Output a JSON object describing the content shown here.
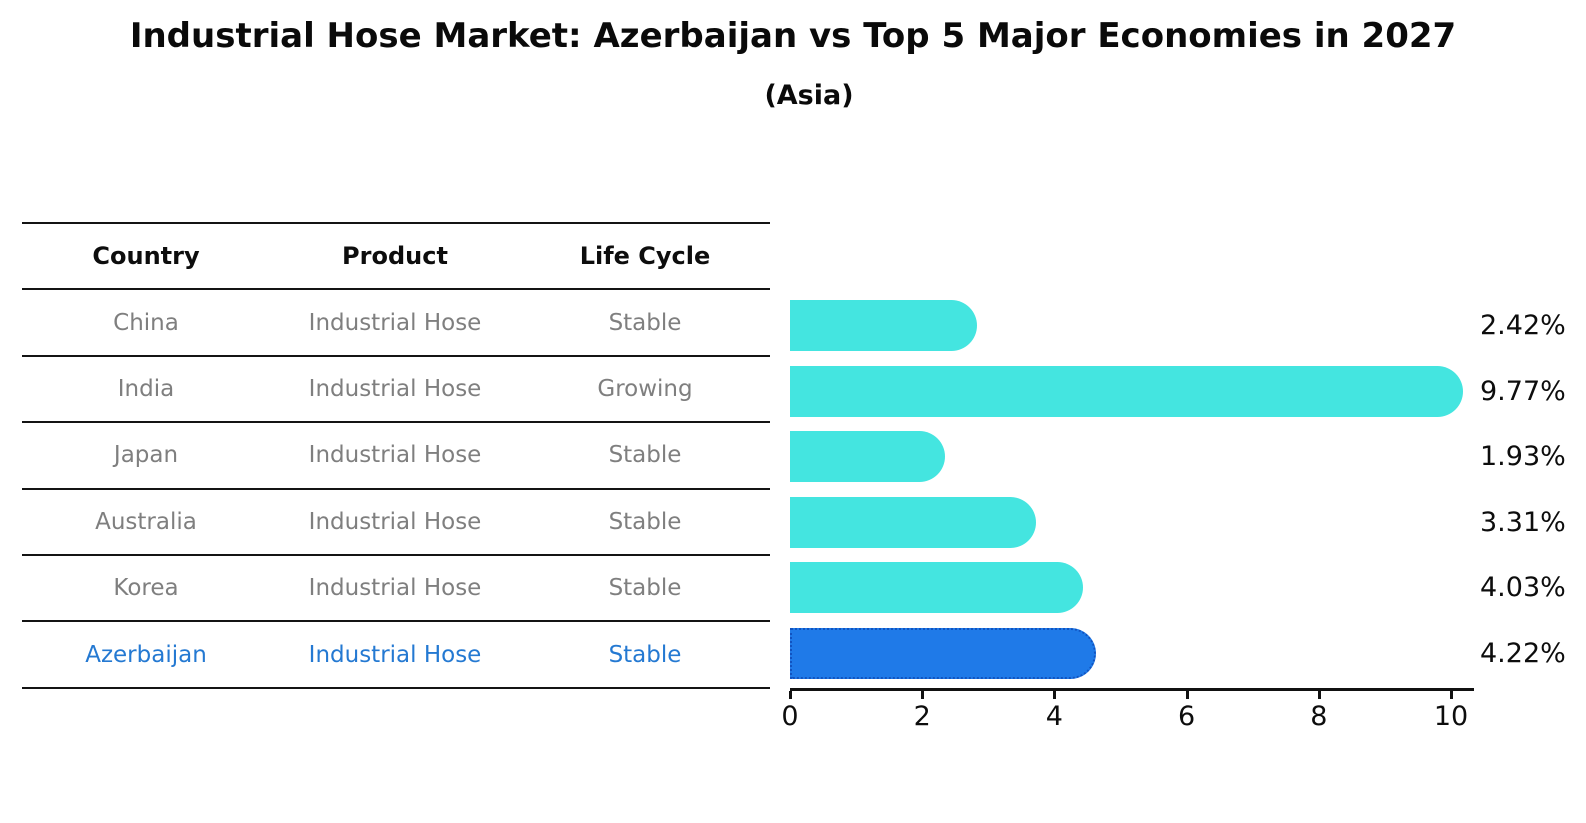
{
  "title": "Industrial Hose Market: Azerbaijan vs Top 5 Major Economies in 2027",
  "subtitle": "(Asia)",
  "table": {
    "headers": [
      "Country",
      "Product",
      "Life Cycle"
    ],
    "rows": [
      {
        "country": "China",
        "product": "Industrial Hose",
        "life_cycle": "Stable"
      },
      {
        "country": "India",
        "product": "Industrial Hose",
        "life_cycle": "Growing"
      },
      {
        "country": "Japan",
        "product": "Industrial Hose",
        "life_cycle": "Stable"
      },
      {
        "country": "Australia",
        "product": "Industrial Hose",
        "life_cycle": "Stable"
      },
      {
        "country": "Korea",
        "product": "Industrial Hose",
        "life_cycle": "Stable"
      },
      {
        "country": "Azerbaijan",
        "product": "Industrial Hose",
        "life_cycle": "Stable"
      }
    ]
  },
  "chart_data": {
    "type": "bar",
    "orientation": "horizontal",
    "title": "Industrial Hose Market: Azerbaijan vs Top 5 Major Economies in 2027",
    "subtitle": "(Asia)",
    "categories": [
      "China",
      "India",
      "Japan",
      "Australia",
      "Korea",
      "Azerbaijan"
    ],
    "values": [
      2.42,
      9.77,
      1.93,
      3.31,
      4.03,
      4.22
    ],
    "labels": [
      "2.42%",
      "9.77%",
      "1.93%",
      "3.31%",
      "4.03%",
      "4.22%"
    ],
    "xlim": [
      0,
      10.3
    ],
    "xticks": [
      0,
      2,
      4,
      6,
      8,
      10
    ],
    "grid": false,
    "legend": "none",
    "bar_color": "#44e5e0",
    "highlight_index": 5,
    "highlight_bar_color": "#1f7ae8",
    "highlight_border_color": "#1153c0",
    "highlight_text_color": "#2479d2",
    "table_text_color": "#7f7f7f",
    "axis_color": "#111111"
  }
}
